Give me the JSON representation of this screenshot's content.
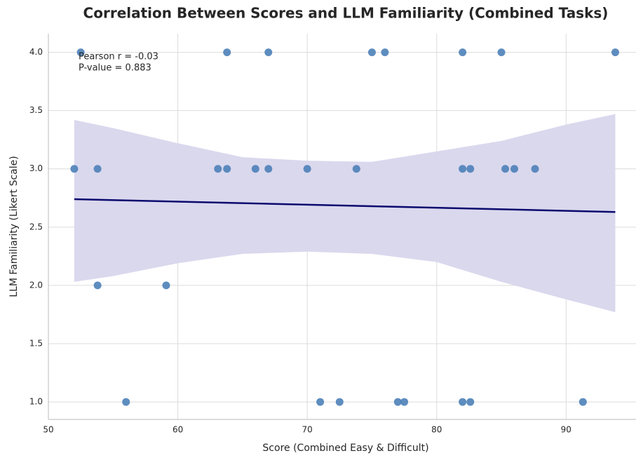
{
  "chart_data": {
    "type": "scatter",
    "title": "Correlation Between Scores and LLM Familiarity (Combined Tasks)",
    "x_label": "Score (Combined Easy & Difficult)",
    "y_label": "LLM Familiarity (Likert Scale)",
    "annotations": [
      "Pearson r = -0.03",
      "P-value = 0.883"
    ],
    "xlim": [
      50,
      95.4
    ],
    "ylim": [
      0.85,
      4.16
    ],
    "xticks": [
      50,
      60,
      70,
      80,
      90
    ],
    "yticks": [
      {
        "value": 1,
        "label": "1.0"
      },
      {
        "value": 1.5,
        "label": "1.5"
      },
      {
        "value": 2,
        "label": "2.0"
      },
      {
        "value": 2.5,
        "label": "2.5"
      },
      {
        "value": 3,
        "label": "3.0"
      },
      {
        "value": 3.5,
        "label": "3.5"
      },
      {
        "value": 4,
        "label": "4.0"
      }
    ],
    "grid": true,
    "points": {
      "color": "#4c81b8",
      "x": [
        52.5,
        63.8,
        67.0,
        75.0,
        76.0,
        82.0,
        85.0,
        93.8,
        52.0,
        53.8,
        63.1,
        63.8,
        66.0,
        67.0,
        70.0,
        73.8,
        82.0,
        82.6,
        85.3,
        86.0,
        87.6,
        53.8,
        59.1,
        56.0,
        71.0,
        72.5,
        77.0,
        77.5,
        82.0,
        82.6,
        91.3
      ],
      "y": [
        4,
        4,
        4,
        4,
        4,
        4,
        4,
        4,
        3,
        3,
        3,
        3,
        3,
        3,
        3,
        3,
        3,
        3,
        3,
        3,
        3,
        2,
        2,
        1,
        1,
        1,
        1,
        1,
        1,
        1,
        1
      ]
    },
    "fit": {
      "color": "#0a0a6e",
      "x": [
        52,
        93.8
      ],
      "y": [
        2.74,
        2.63
      ]
    },
    "band": {
      "color": "#d8d6ec",
      "x": [
        52,
        55,
        60,
        65,
        70,
        75,
        80,
        85,
        90,
        93.8
      ],
      "upper": [
        3.42,
        3.35,
        3.22,
        3.1,
        3.07,
        3.06,
        3.15,
        3.24,
        3.38,
        3.47
      ],
      "lower": [
        2.03,
        2.08,
        2.19,
        2.27,
        2.29,
        2.27,
        2.2,
        2.03,
        1.88,
        1.77
      ]
    }
  }
}
